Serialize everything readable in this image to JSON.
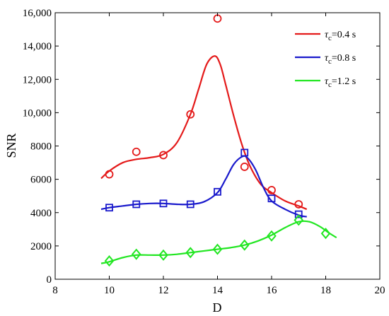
{
  "chart_data": {
    "type": "line",
    "title": "",
    "xlabel": "D",
    "ylabel": "SNR",
    "xlim": [
      8,
      20
    ],
    "ylim": [
      0,
      16000
    ],
    "xticks": [
      8,
      10,
      12,
      14,
      16,
      18,
      20
    ],
    "yticks": [
      0,
      2000,
      4000,
      6000,
      8000,
      10000,
      12000,
      14000,
      16000
    ],
    "ytick_labels": [
      "0",
      "2000",
      "4000",
      "6000",
      "8000",
      "10,000",
      "12,000",
      "14,000",
      "16,000"
    ],
    "grid": false,
    "legend_position": "top-right",
    "series": [
      {
        "name": "τc=0.4 s",
        "legend_symbol": "τ",
        "legend_subscript": "c",
        "legend_rest": "=0.4 s",
        "color": "#e41a1a",
        "marker": "circle",
        "points": {
          "x": [
            10,
            11,
            12,
            13,
            14,
            15,
            16,
            17
          ],
          "y": [
            6300,
            7650,
            7450,
            9900,
            15650,
            6750,
            5350,
            4500
          ]
        },
        "fit": {
          "x": [
            9.7,
            10,
            10.5,
            11,
            11.5,
            12,
            12.5,
            13,
            13.3,
            13.6,
            13.9,
            14.1,
            14.3,
            14.6,
            14.9,
            15.2,
            15.6,
            16,
            16.5,
            17,
            17.3
          ],
          "y": [
            6050,
            6500,
            7000,
            7200,
            7300,
            7500,
            8200,
            9900,
            11400,
            12900,
            13400,
            12900,
            11700,
            9800,
            8100,
            6800,
            5700,
            5200,
            4700,
            4400,
            4200
          ]
        }
      },
      {
        "name": "τc=0.8 s",
        "legend_symbol": "τ",
        "legend_subscript": "c",
        "legend_rest": "=0.8 s",
        "color": "#1a1acc",
        "marker": "square",
        "points": {
          "x": [
            10,
            11,
            12,
            13,
            14,
            15,
            16,
            17
          ],
          "y": [
            4300,
            4500,
            4550,
            4500,
            5250,
            7600,
            4850,
            3900
          ]
        },
        "fit": {
          "x": [
            9.7,
            10,
            10.5,
            11,
            11.5,
            12,
            12.5,
            13,
            13.5,
            14,
            14.3,
            14.6,
            14.9,
            15.1,
            15.4,
            15.7,
            16,
            16.5,
            17,
            17.3
          ],
          "y": [
            4200,
            4300,
            4400,
            4500,
            4550,
            4550,
            4500,
            4500,
            4650,
            5200,
            6000,
            6900,
            7350,
            7300,
            6600,
            5500,
            4700,
            4200,
            3850,
            3750
          ]
        }
      },
      {
        "name": "τc=1.2 s",
        "legend_symbol": "τ",
        "legend_subscript": "c",
        "legend_rest": "=1.2 s",
        "color": "#22e622",
        "marker": "diamond",
        "points": {
          "x": [
            10,
            11,
            12,
            13,
            14,
            15,
            16,
            17,
            18
          ],
          "y": [
            1100,
            1500,
            1450,
            1600,
            1800,
            2050,
            2600,
            3550,
            2750
          ]
        },
        "fit": {
          "x": [
            9.7,
            10,
            10.5,
            11,
            11.5,
            12,
            12.5,
            13,
            13.5,
            14,
            14.5,
            15,
            15.5,
            16,
            16.5,
            17,
            17.4,
            17.8,
            18.1,
            18.4
          ],
          "y": [
            950,
            1050,
            1300,
            1450,
            1450,
            1450,
            1500,
            1600,
            1700,
            1800,
            1900,
            2050,
            2300,
            2650,
            3100,
            3450,
            3450,
            3150,
            2800,
            2500
          ]
        }
      }
    ]
  }
}
